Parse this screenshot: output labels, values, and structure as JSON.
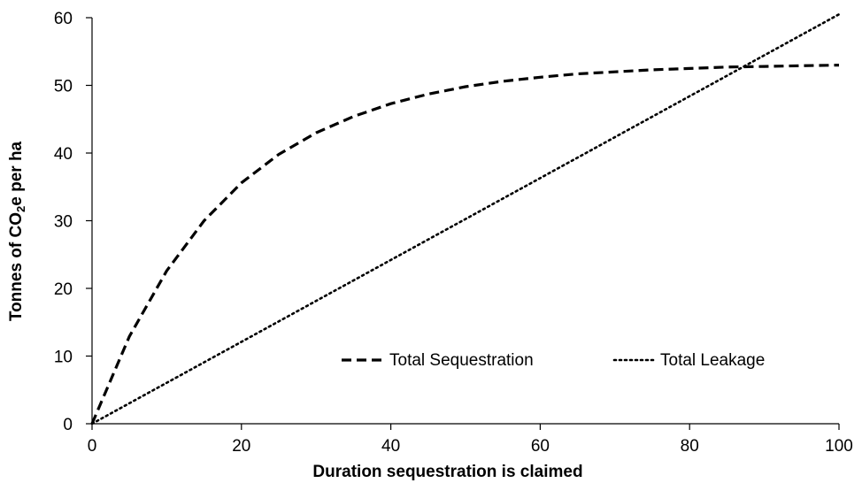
{
  "chart_data": {
    "type": "line",
    "title": "",
    "xlabel": "Duration sequestration is claimed",
    "ylabel": {
      "main": "Tonnes of CO",
      "subscript": "2",
      "after": "e per ha"
    },
    "xlim": [
      0,
      100
    ],
    "ylim": [
      0,
      60
    ],
    "xticks": [
      0,
      20,
      40,
      60,
      80,
      100
    ],
    "yticks": [
      0,
      10,
      20,
      30,
      40,
      50,
      60
    ],
    "grid": false,
    "legend_position": "bottom-right",
    "series": [
      {
        "name": "Total Sequestration",
        "style": "dashed",
        "color": "#000000",
        "x": [
          0,
          5,
          10,
          15,
          20,
          25,
          30,
          35,
          40,
          45,
          50,
          55,
          60,
          65,
          70,
          75,
          80,
          85,
          90,
          95,
          100
        ],
        "y": [
          0,
          12.9,
          22.6,
          30.0,
          35.6,
          39.8,
          43.0,
          45.4,
          47.3,
          48.7,
          49.8,
          50.6,
          51.2,
          51.7,
          52.0,
          52.3,
          52.5,
          52.7,
          52.8,
          52.9,
          53.0
        ]
      },
      {
        "name": "Total Leakage",
        "style": "dotted",
        "color": "#000000",
        "x": [
          0,
          100
        ],
        "y": [
          0,
          60.5
        ]
      }
    ]
  }
}
